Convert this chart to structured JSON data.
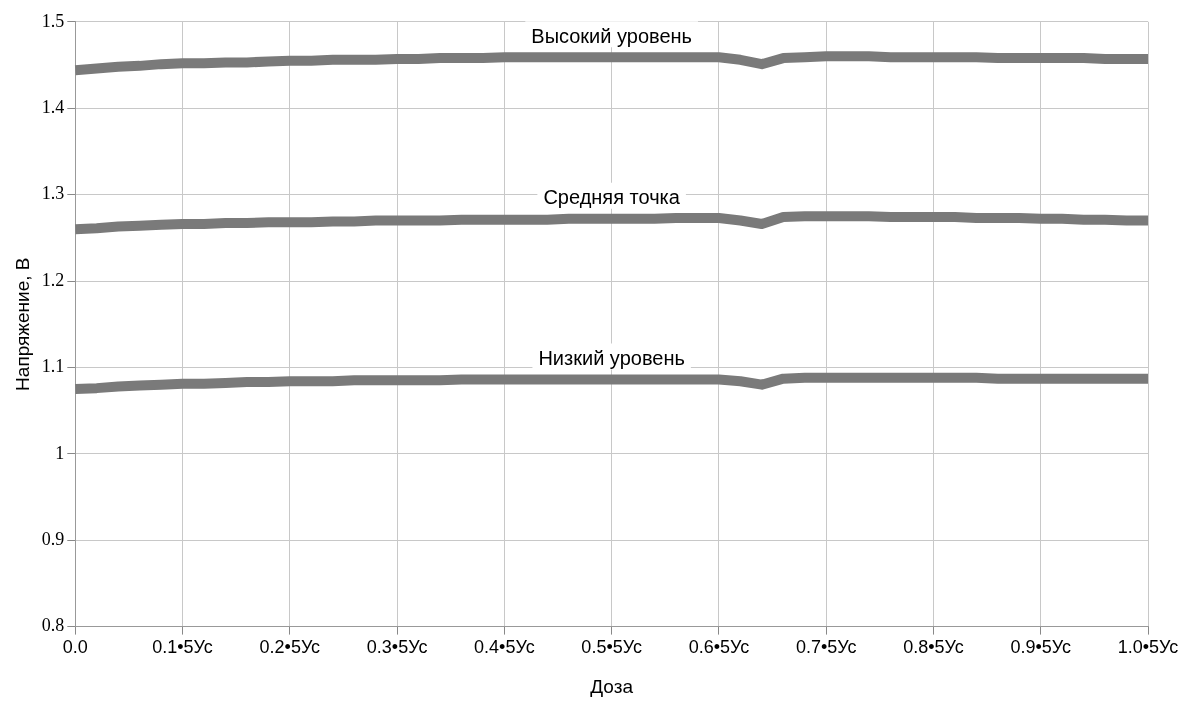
{
  "chart_data": {
    "type": "line",
    "xlabel": "Доза",
    "ylabel": "Напряжение, В",
    "ylim": [
      0.8,
      1.5
    ],
    "categories": [
      "0.0",
      null,
      null,
      null,
      null,
      "0.1•5Ус",
      null,
      null,
      null,
      null,
      "0.2•5Ус",
      null,
      null,
      null,
      null,
      "0.3•5Ус",
      null,
      null,
      null,
      null,
      "0.4•5Ус",
      null,
      null,
      null,
      null,
      "0.5•5Ус",
      null,
      null,
      null,
      null,
      "0.6•5Ус",
      null,
      null,
      null,
      null,
      "0.7•5Ус",
      null,
      null,
      null,
      null,
      "0.8•5Ус",
      null,
      null,
      null,
      null,
      "0.9•5Ус",
      null,
      null,
      null,
      null,
      "1.0•5Ус"
    ],
    "yticks": [
      0.8,
      0.9,
      1,
      1.1,
      1.2,
      1.3,
      1.4,
      1.5
    ],
    "grid": true,
    "legend": false,
    "marker": "none",
    "line_style": "solid",
    "series": [
      {
        "name": "Высокий уровень",
        "color": "#7a7a7a",
        "values": [
          1.444,
          1.446,
          1.448,
          1.449,
          1.451,
          1.452,
          1.452,
          1.453,
          1.453,
          1.454,
          1.455,
          1.455,
          1.456,
          1.456,
          1.456,
          1.457,
          1.457,
          1.458,
          1.458,
          1.458,
          1.459,
          1.459,
          1.459,
          1.459,
          1.459,
          1.459,
          1.459,
          1.459,
          1.459,
          1.459,
          1.459,
          1.456,
          1.451,
          1.458,
          1.459,
          1.46,
          1.46,
          1.46,
          1.459,
          1.459,
          1.459,
          1.459,
          1.459,
          1.458,
          1.458,
          1.458,
          1.458,
          1.458,
          1.457,
          1.457,
          1.457
        ]
      },
      {
        "name": "Средняя точка",
        "color": "#7a7a7a",
        "values": [
          1.26,
          1.261,
          1.263,
          1.264,
          1.265,
          1.266,
          1.266,
          1.267,
          1.267,
          1.268,
          1.268,
          1.268,
          1.269,
          1.269,
          1.27,
          1.27,
          1.27,
          1.27,
          1.271,
          1.271,
          1.271,
          1.271,
          1.271,
          1.272,
          1.272,
          1.272,
          1.272,
          1.272,
          1.273,
          1.273,
          1.273,
          1.27,
          1.266,
          1.274,
          1.275,
          1.275,
          1.275,
          1.275,
          1.274,
          1.274,
          1.274,
          1.274,
          1.273,
          1.273,
          1.273,
          1.272,
          1.272,
          1.271,
          1.271,
          1.27,
          1.27
        ]
      },
      {
        "name": "Низкий уровень",
        "color": "#7a7a7a",
        "values": [
          1.075,
          1.076,
          1.078,
          1.079,
          1.08,
          1.081,
          1.081,
          1.082,
          1.083,
          1.083,
          1.084,
          1.084,
          1.084,
          1.085,
          1.085,
          1.085,
          1.085,
          1.085,
          1.086,
          1.086,
          1.086,
          1.086,
          1.086,
          1.086,
          1.086,
          1.086,
          1.086,
          1.086,
          1.086,
          1.086,
          1.086,
          1.084,
          1.08,
          1.087,
          1.088,
          1.088,
          1.088,
          1.088,
          1.088,
          1.088,
          1.088,
          1.088,
          1.088,
          1.087,
          1.087,
          1.087,
          1.087,
          1.087,
          1.087,
          1.087,
          1.087
        ]
      }
    ]
  }
}
